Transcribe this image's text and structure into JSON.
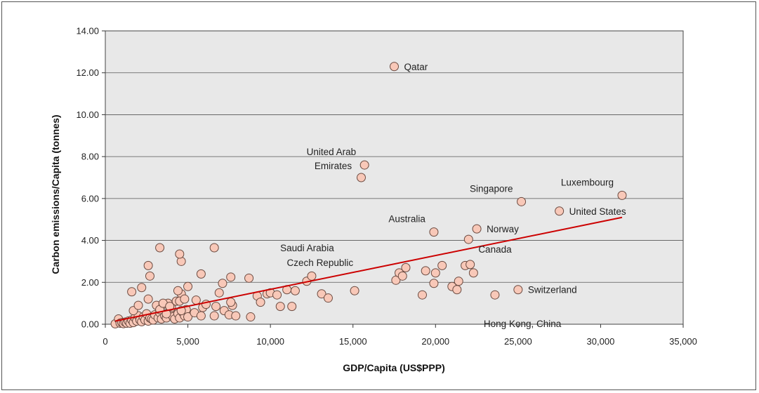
{
  "chart_data": {
    "type": "scatter",
    "title": "",
    "xlabel": "GDP/Capita (US$PPP)",
    "ylabel": "Carbon emissions/Capita (tonnes)",
    "xlim": [
      0,
      35000
    ],
    "ylim": [
      0,
      14
    ],
    "x_ticks": [
      "0",
      "5,000",
      "10,000",
      "15,000",
      "20,000",
      "25,000",
      "30,000",
      "35,000"
    ],
    "y_ticks": [
      "0.00",
      "2.00",
      "4.00",
      "6.00",
      "8.00",
      "10.00",
      "12.00",
      "14.00"
    ],
    "grid": "horizontal",
    "colors": {
      "plot_bg": "#e8e8e8",
      "point_fill": "#f8c8b8",
      "point_stroke": "#6a4a40",
      "trend": "#cc0000",
      "grid": "#555555"
    },
    "trendline": {
      "x": [
        600,
        31300
      ],
      "y": [
        0.15,
        5.1
      ]
    },
    "labels": [
      {
        "text": "Qatar",
        "x": 17500,
        "y": 12.3,
        "anchor": "right"
      },
      {
        "text": "United Arab",
        "x": 15700,
        "y": 7.6,
        "anchor": "above-left"
      },
      {
        "text": "Emirates",
        "x": 15700,
        "y": 7.6,
        "anchor": "left-lower"
      },
      {
        "text": "Luxembourg",
        "x": 31300,
        "y": 6.15,
        "anchor": "above-left"
      },
      {
        "text": "Singapore",
        "x": 25200,
        "y": 5.85,
        "anchor": "above-left"
      },
      {
        "text": "United States",
        "x": 27500,
        "y": 5.4,
        "anchor": "right"
      },
      {
        "text": "Australia",
        "x": 19900,
        "y": 4.4,
        "anchor": "above-left"
      },
      {
        "text": "Norway",
        "x": 22500,
        "y": 4.55,
        "anchor": "right"
      },
      {
        "text": "Canada",
        "x": 22000,
        "y": 4.05,
        "anchor": "below-right"
      },
      {
        "text": "Saudi Arabia",
        "x": 10000,
        "y": 3.65,
        "anchor": "right"
      },
      {
        "text": "Czech Republic",
        "x": 10400,
        "y": 2.95,
        "anchor": "right"
      },
      {
        "text": "Switzerland",
        "x": 25000,
        "y": 1.65,
        "anchor": "right"
      },
      {
        "text": "Hong Kong, China",
        "x": 23600,
        "y": 1.4,
        "anchor": "below"
      }
    ],
    "series": [
      {
        "x": [
          600,
          800,
          900,
          1000,
          1100,
          1200,
          1300,
          1400,
          1500,
          1600,
          1700,
          1800,
          1900,
          2000,
          2100,
          2200,
          2300,
          2400,
          2500,
          2600,
          2700,
          2800,
          2900,
          3000,
          3100,
          3200,
          3300,
          3400,
          3500,
          3600,
          3700,
          3800,
          3900,
          4000,
          4100,
          4200,
          4300,
          4400,
          4500,
          4600,
          4700,
          4800,
          4900,
          5000,
          1600,
          1700,
          2000,
          2200,
          2600,
          2700,
          3300,
          3500,
          3700,
          3900,
          4400,
          4500,
          4600,
          4800,
          5000,
          5400,
          5500,
          5800,
          5900,
          6100,
          6600,
          6700,
          6900,
          7100,
          7200,
          7500,
          7600,
          7700,
          7900,
          8700,
          8800,
          9200,
          9400,
          9800,
          10000,
          10400,
          10600,
          11000,
          11300,
          11500,
          12200,
          12500,
          13100,
          13500,
          15100,
          15500,
          15700,
          17500,
          17600,
          17800,
          18000,
          18200,
          19200,
          19400,
          19900,
          19900,
          20000,
          20400,
          21000,
          21300,
          21400,
          21800,
          22000,
          22100,
          22300,
          22500,
          23600,
          25000,
          25200,
          27500,
          31300,
          3300,
          4600,
          4500,
          6600,
          5800,
          2600,
          7600
        ],
        "y": [
          0.02,
          0.25,
          0.05,
          0.08,
          0.03,
          0.1,
          0.05,
          0.15,
          0.05,
          0.2,
          0.08,
          0.3,
          0.15,
          0.4,
          0.2,
          0.12,
          0.35,
          0.2,
          0.5,
          0.15,
          0.3,
          0.25,
          0.2,
          0.45,
          0.9,
          0.3,
          0.55,
          0.25,
          0.95,
          0.4,
          0.3,
          1.0,
          0.6,
          0.8,
          0.35,
          0.25,
          1.1,
          0.5,
          0.3,
          1.45,
          0.55,
          0.4,
          0.7,
          0.35,
          1.55,
          0.65,
          0.9,
          1.75,
          1.2,
          2.3,
          0.7,
          1.0,
          0.5,
          0.85,
          1.6,
          1.1,
          0.65,
          1.2,
          1.8,
          0.55,
          1.15,
          0.4,
          0.8,
          0.95,
          0.4,
          0.85,
          1.5,
          1.95,
          0.65,
          0.45,
          2.25,
          0.9,
          0.4,
          2.2,
          0.35,
          1.35,
          1.05,
          1.45,
          1.5,
          1.4,
          0.85,
          1.65,
          0.85,
          1.6,
          2.05,
          2.3,
          1.45,
          1.25,
          1.6,
          7.0,
          7.6,
          12.3,
          2.1,
          2.45,
          2.3,
          2.7,
          1.4,
          2.55,
          1.95,
          4.4,
          2.45,
          2.8,
          1.8,
          1.65,
          2.05,
          2.8,
          4.05,
          2.85,
          2.45,
          4.55,
          1.4,
          1.65,
          5.85,
          5.4,
          6.15,
          3.65,
          3.0,
          3.35,
          3.65,
          2.4,
          2.8,
          1.05
        ]
      }
    ]
  }
}
